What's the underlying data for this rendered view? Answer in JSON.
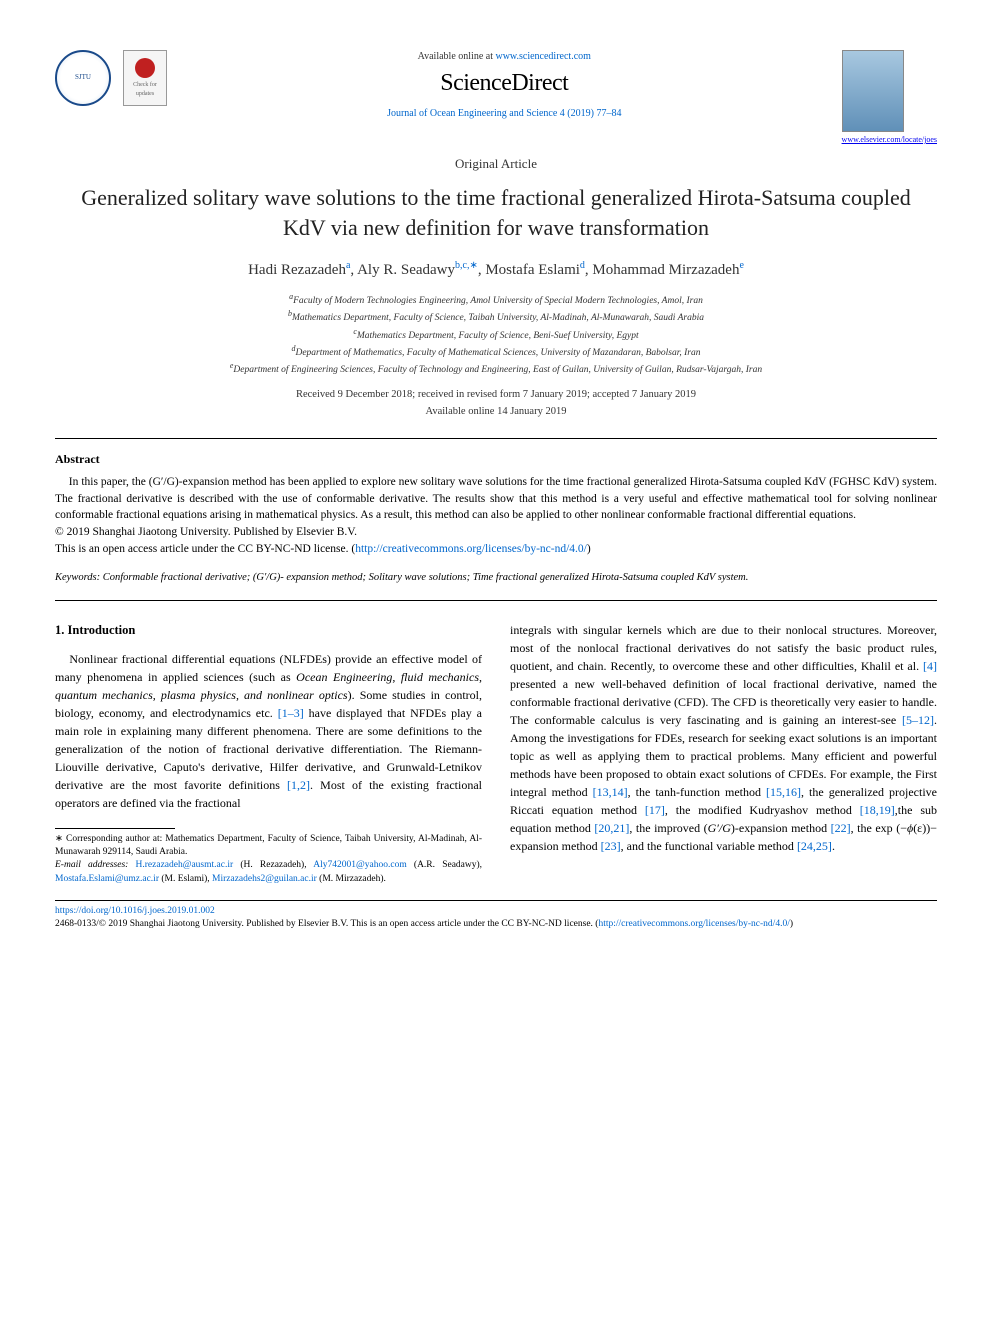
{
  "header": {
    "available_prefix": "Available online at ",
    "available_url": "www.sciencedirect.com",
    "publisher_logo_text": "ScienceDirect",
    "journal_ref_text": "Journal of Ocean Engineering and Science 4 (2019) 77–84",
    "journal_locate": "www.elsevier.com/locate/joes",
    "check_updates_label": "Check for updates",
    "sjtu_alt": "SJTU"
  },
  "article": {
    "type": "Original Article",
    "title": "Generalized solitary wave solutions to the time fractional generalized Hirota-Satsuma coupled KdV via new definition for wave transformation",
    "authors_html": "Hadi Rezazadeh<sup>a</sup>, Aly R. Seadawy<sup>b,c,∗</sup>, Mostafa Eslami<sup>d</sup>, Mohammad Mirzazadeh<sup>e</sup>",
    "affiliations": [
      "a Faculty of Modern Technologies Engineering, Amol University of Special Modern Technologies, Amol, Iran",
      "b Mathematics Department, Faculty of Science, Taibah University, Al-Madinah, Al-Munawarah, Saudi Arabia",
      "c Mathematics Department, Faculty of Science, Beni-Suef University, Egypt",
      "d Department of Mathematics, Faculty of Mathematical Sciences, University of Mazandaran, Babolsar, Iran",
      "e Department of Engineering Sciences, Faculty of Technology and Engineering, East of Guilan, University of Guilan, Rudsar-Vajargah, Iran"
    ],
    "dates": "Received 9 December 2018; received in revised form 7 January 2019; accepted 7 January 2019",
    "available_online": "Available online 14 January 2019"
  },
  "abstract": {
    "heading": "Abstract",
    "text": "In this paper, the (G′/G)-expansion method has been applied to explore new solitary wave solutions for the time fractional generalized Hirota-Satsuma coupled KdV (FGHSC KdV) system. The fractional derivative is described with the use of conformable derivative. The results show that this method is a very useful and effective mathematical tool for solving nonlinear conformable fractional equations arising in mathematical physics. As a result, this method can also be applied to other nonlinear conformable fractional differential equations.",
    "copyright": "© 2019 Shanghai Jiaotong University. Published by Elsevier B.V.",
    "license_prefix": "This is an open access article under the CC BY-NC-ND license. (",
    "license_url": "http://creativecommons.org/licenses/by-nc-nd/4.0/",
    "license_suffix": ")"
  },
  "keywords": {
    "label": "Keywords:",
    "text": " Conformable fractional derivative; (G′/G)- expansion method; Solitary wave solutions; Time fractional generalized Hirota-Satsuma coupled KdV system."
  },
  "body": {
    "section_heading": "1. Introduction",
    "col1": "Nonlinear fractional differential equations (NLFDEs) provide an effective model of many phenomena in applied sciences (such as Ocean Engineering, fluid mechanics, quantum mechanics, plasma physics, and nonlinear optics). Some studies in control, biology, economy, and electrodynamics etc. [1–3] have displayed that NFDEs play a main role in explaining many different phenomena. There are some definitions to the generalization of the notion of fractional derivative differentiation. The Riemann-Liouville derivative, Caputo's derivative, Hilfer derivative, and Grunwald-Letnikov derivative are the most favorite definitions [1,2]. Most of the existing fractional operators are defined via the fractional",
    "col1_refs": {
      "r1": "[1–3]",
      "r2": "[1,2]"
    },
    "col2": "integrals with singular kernels which are due to their nonlocal structures. Moreover, most of the nonlocal fractional derivatives do not satisfy the basic product rules, quotient, and chain. Recently, to overcome these and other difficulties, Khalil et al. [4] presented a new well-behaved definition of local fractional derivative, named the conformable fractional derivative (CFD). The CFD is theoretically very easier to handle. The conformable calculus is very fascinating and is gaining an interest-see [5–12]. Among the investigations for FDEs, research for seeking exact solutions is an important topic as well as applying them to practical problems. Many efficient and powerful methods have been proposed to obtain exact solutions of CFDEs. For example, the First integral method [13,14], the tanh-function method [15,16], the generalized projective Riccati equation method [17], the modified Kudryashov method [18,19],the sub equation method [20,21], the improved (G′/G)-expansion method [22], the exp (−ϕ(ε))− expansion method [23], and the functional variable method [24,25].",
    "col2_refs": {
      "r4": "[4]",
      "r5": "[5–12]",
      "r13": "[13,14]",
      "r15": "[15,16]",
      "r17": "[17]",
      "r18": "[18,19]",
      "r20": "[20,21]",
      "r22": "[22]",
      "r23": "[23]",
      "r24": "[24,25]"
    }
  },
  "footnote": {
    "corr": "∗ Corresponding author at: Mathematics Department, Faculty of Science, Taibah University, Al-Madinah, Al-Munawarah 929114, Saudi Arabia.",
    "email_label": "E-mail addresses:",
    "emails": [
      {
        "addr": "H.rezazadeh@ausmt.ac.ir",
        "who": "(H. Rezazadeh)"
      },
      {
        "addr": "Aly742001@yahoo.com",
        "who": "(A.R. Seadawy)"
      },
      {
        "addr": "Mostafa.Eslami@umz.ac.ir",
        "who": "(M. Eslami)"
      },
      {
        "addr": "Mirzazadehs2@guilan.ac.ir",
        "who": "(M. Mirzazadeh)"
      }
    ]
  },
  "footer": {
    "doi": "https://doi.org/10.1016/j.joes.2019.01.002",
    "copy": "2468-0133/© 2019 Shanghai Jiaotong University. Published by Elsevier B.V. This is an open access article under the CC BY-NC-ND license.",
    "license_url": "http://creativecommons.org/licenses/by-nc-nd/4.0/"
  },
  "colors": {
    "link": "#0066cc",
    "text": "#000000",
    "rule": "#000000"
  },
  "typography": {
    "title_fontsize": 22,
    "body_fontsize": 12,
    "abstract_fontsize": 11.5,
    "footnote_fontsize": 9.5
  }
}
